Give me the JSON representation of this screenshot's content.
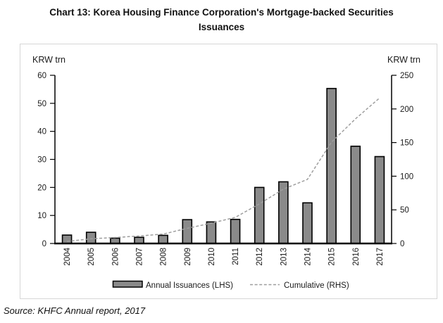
{
  "title": {
    "line1": "Chart 13: Korea Housing Finance Corporation's Mortgage-backed Securities",
    "line2": "Issuances"
  },
  "source": "Source: KHFC Annual report, 2017",
  "chart_data": {
    "type": "bar",
    "categories": [
      "2004",
      "2005",
      "2006",
      "2007",
      "2008",
      "2009",
      "2010",
      "2011",
      "2012",
      "2013",
      "2014",
      "2015",
      "2016",
      "2017"
    ],
    "series": [
      {
        "name": "Annual Issuances (LHS)",
        "type": "bar",
        "axis": "left",
        "values": [
          3.0,
          4.0,
          1.9,
          2.2,
          2.9,
          8.5,
          7.7,
          8.6,
          20.0,
          22.0,
          14.5,
          55.3,
          34.7,
          31.0
        ]
      },
      {
        "name": "Cumulative (RHS)",
        "type": "line",
        "axis": "right",
        "values": [
          3.0,
          7.0,
          8.9,
          11.1,
          14.0,
          22.5,
          30.2,
          38.8,
          58.8,
          80.8,
          95.3,
          150.6,
          185.3,
          216.3
        ]
      }
    ],
    "left_axis": {
      "label": "KRW trn",
      "min": 0,
      "max": 60,
      "step": 10
    },
    "right_axis": {
      "label": "KRW trn",
      "min": 0,
      "max": 250,
      "step": 50
    },
    "grid": false,
    "legend_position": "bottom",
    "colors": {
      "bar_fill": "#8a8a8a",
      "bar_stroke": "#000000",
      "line": "#9e9e9e",
      "axis": "#000000",
      "tick_text": "#1a1a1a",
      "box_border": "#d6d6d6"
    }
  }
}
